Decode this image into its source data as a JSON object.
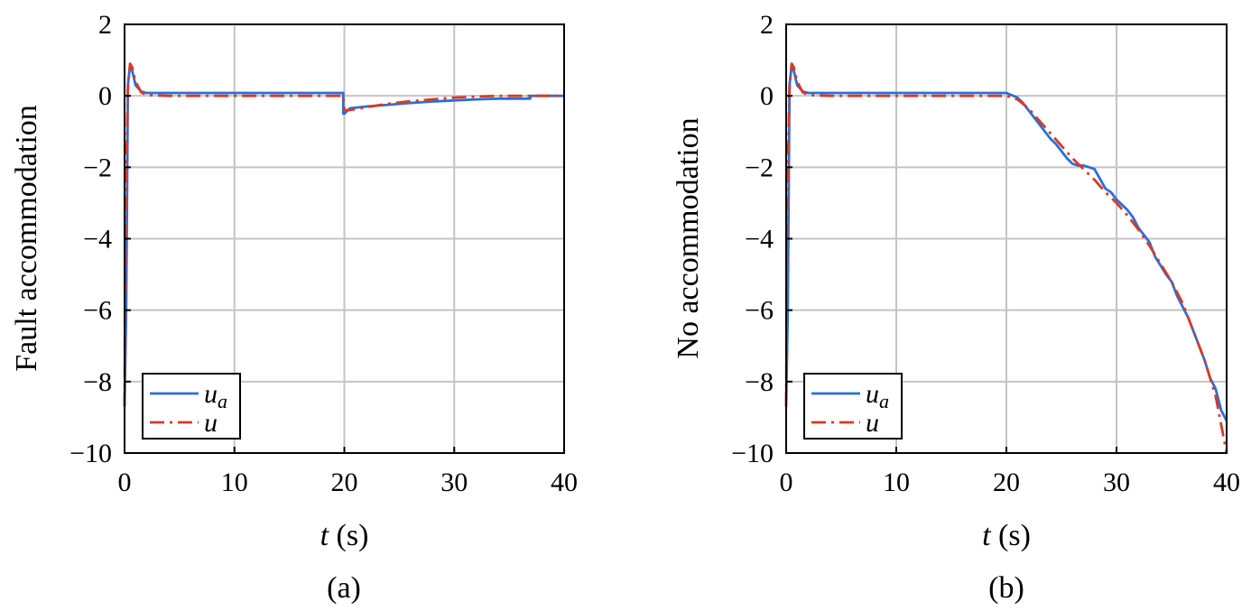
{
  "chart_data": [
    {
      "type": "line",
      "caption": "(a)",
      "ylabel": "Fault accommodation",
      "xlabel_var": "t",
      "xlabel_unit": " (s)",
      "xlim": [
        0,
        40
      ],
      "ylim": [
        -10,
        2
      ],
      "xticks": [
        0,
        10,
        20,
        30,
        40
      ],
      "xtick_labels": [
        "0",
        "10",
        "20",
        "30",
        "40"
      ],
      "yticks": [
        2,
        0,
        -2,
        -4,
        -6,
        -8,
        -10
      ],
      "ytick_labels": [
        "2",
        "0",
        "−2",
        "−4",
        "−6",
        "−8",
        "−10"
      ],
      "grid": true,
      "legend_position": "bottom-left",
      "series": [
        {
          "name": "u_a",
          "legend_main": "u",
          "legend_sub": "a",
          "color": "#2b6fd8",
          "style": "solid",
          "x": [
            0,
            0.15,
            0.3,
            0.5,
            0.7,
            1.0,
            1.5,
            2.0,
            19.9,
            19.9,
            20,
            20.5,
            22,
            24,
            26,
            28,
            30,
            32,
            34,
            36.9,
            37,
            40
          ],
          "y": [
            -8.7,
            -6,
            0.3,
            0.85,
            0.7,
            0.3,
            0.12,
            0.08,
            0.08,
            -0.5,
            -0.5,
            -0.35,
            -0.3,
            -0.25,
            -0.2,
            -0.16,
            -0.13,
            -0.1,
            -0.08,
            -0.08,
            0,
            0
          ]
        },
        {
          "name": "u",
          "legend_main": "u",
          "legend_sub": "",
          "color": "#d93a22",
          "style": "dashdot",
          "x": [
            0,
            0.1,
            0.3,
            0.5,
            0.7,
            1.0,
            1.5,
            2.0,
            4,
            19.9,
            20,
            20.5,
            22,
            24,
            26,
            28,
            30,
            32,
            34,
            40
          ],
          "y": [
            -8.7,
            -3,
            0.2,
            0.9,
            0.8,
            0.4,
            0.1,
            0.02,
            0,
            0,
            -0.4,
            -0.4,
            -0.32,
            -0.22,
            -0.15,
            -0.1,
            -0.05,
            -0.02,
            0,
            0
          ]
        }
      ]
    },
    {
      "type": "line",
      "caption": "(b)",
      "ylabel": "No accommodation",
      "xlabel_var": "t",
      "xlabel_unit": " (s)",
      "xlim": [
        0,
        40
      ],
      "ylim": [
        -10,
        2
      ],
      "xticks": [
        0,
        10,
        20,
        30,
        40
      ],
      "xtick_labels": [
        "0",
        "10",
        "20",
        "30",
        "40"
      ],
      "yticks": [
        2,
        0,
        -2,
        -4,
        -6,
        -8,
        -10
      ],
      "ytick_labels": [
        "2",
        "0",
        "−2",
        "−4",
        "−6",
        "−8",
        "−10"
      ],
      "grid": true,
      "legend_position": "bottom-left",
      "series": [
        {
          "name": "u_a",
          "legend_main": "u",
          "legend_sub": "a",
          "color": "#2b6fd8",
          "style": "solid",
          "x": [
            0,
            0.15,
            0.3,
            0.5,
            0.7,
            1.0,
            1.5,
            2.0,
            20,
            21,
            21.5,
            22,
            22.5,
            23,
            23.5,
            24,
            24.5,
            25,
            25.5,
            26,
            26.5,
            27,
            27.5,
            28,
            29,
            29.5,
            30,
            30.5,
            31,
            31.5,
            32,
            32.5,
            33,
            33.5,
            34,
            34.5,
            35,
            35.5,
            36,
            36.5,
            37,
            37.5,
            38,
            38.5,
            39,
            39.5,
            40
          ],
          "y": [
            -8.7,
            -6,
            0.3,
            0.85,
            0.7,
            0.3,
            0.12,
            0.08,
            0.08,
            -0.05,
            -0.2,
            -0.4,
            -0.6,
            -0.8,
            -1.0,
            -1.2,
            -1.35,
            -1.55,
            -1.75,
            -1.9,
            -1.95,
            -1.95,
            -2.0,
            -2.05,
            -2.6,
            -2.7,
            -2.9,
            -3.05,
            -3.2,
            -3.4,
            -3.7,
            -3.9,
            -4.1,
            -4.5,
            -4.75,
            -5.0,
            -5.2,
            -5.6,
            -5.9,
            -6.2,
            -6.6,
            -7.0,
            -7.4,
            -7.9,
            -8.2,
            -8.8,
            -9.1
          ]
        },
        {
          "name": "u",
          "legend_main": "u",
          "legend_sub": "",
          "color": "#d93a22",
          "style": "dashdot",
          "x": [
            0,
            0.1,
            0.3,
            0.5,
            0.7,
            1.0,
            1.5,
            2.0,
            4,
            20,
            21,
            22,
            23,
            24,
            25,
            26,
            27,
            28,
            29,
            30,
            31,
            32,
            33,
            34,
            35,
            36,
            37,
            38,
            39,
            40
          ],
          "y": [
            -8.7,
            -3,
            0.2,
            0.9,
            0.8,
            0.4,
            0.1,
            0.02,
            0,
            0,
            -0.1,
            -0.35,
            -0.7,
            -1.05,
            -1.4,
            -1.75,
            -2.05,
            -2.35,
            -2.7,
            -3.0,
            -3.35,
            -3.75,
            -4.2,
            -4.7,
            -5.2,
            -5.8,
            -6.6,
            -7.4,
            -8.4,
            -10.0
          ]
        }
      ]
    }
  ]
}
